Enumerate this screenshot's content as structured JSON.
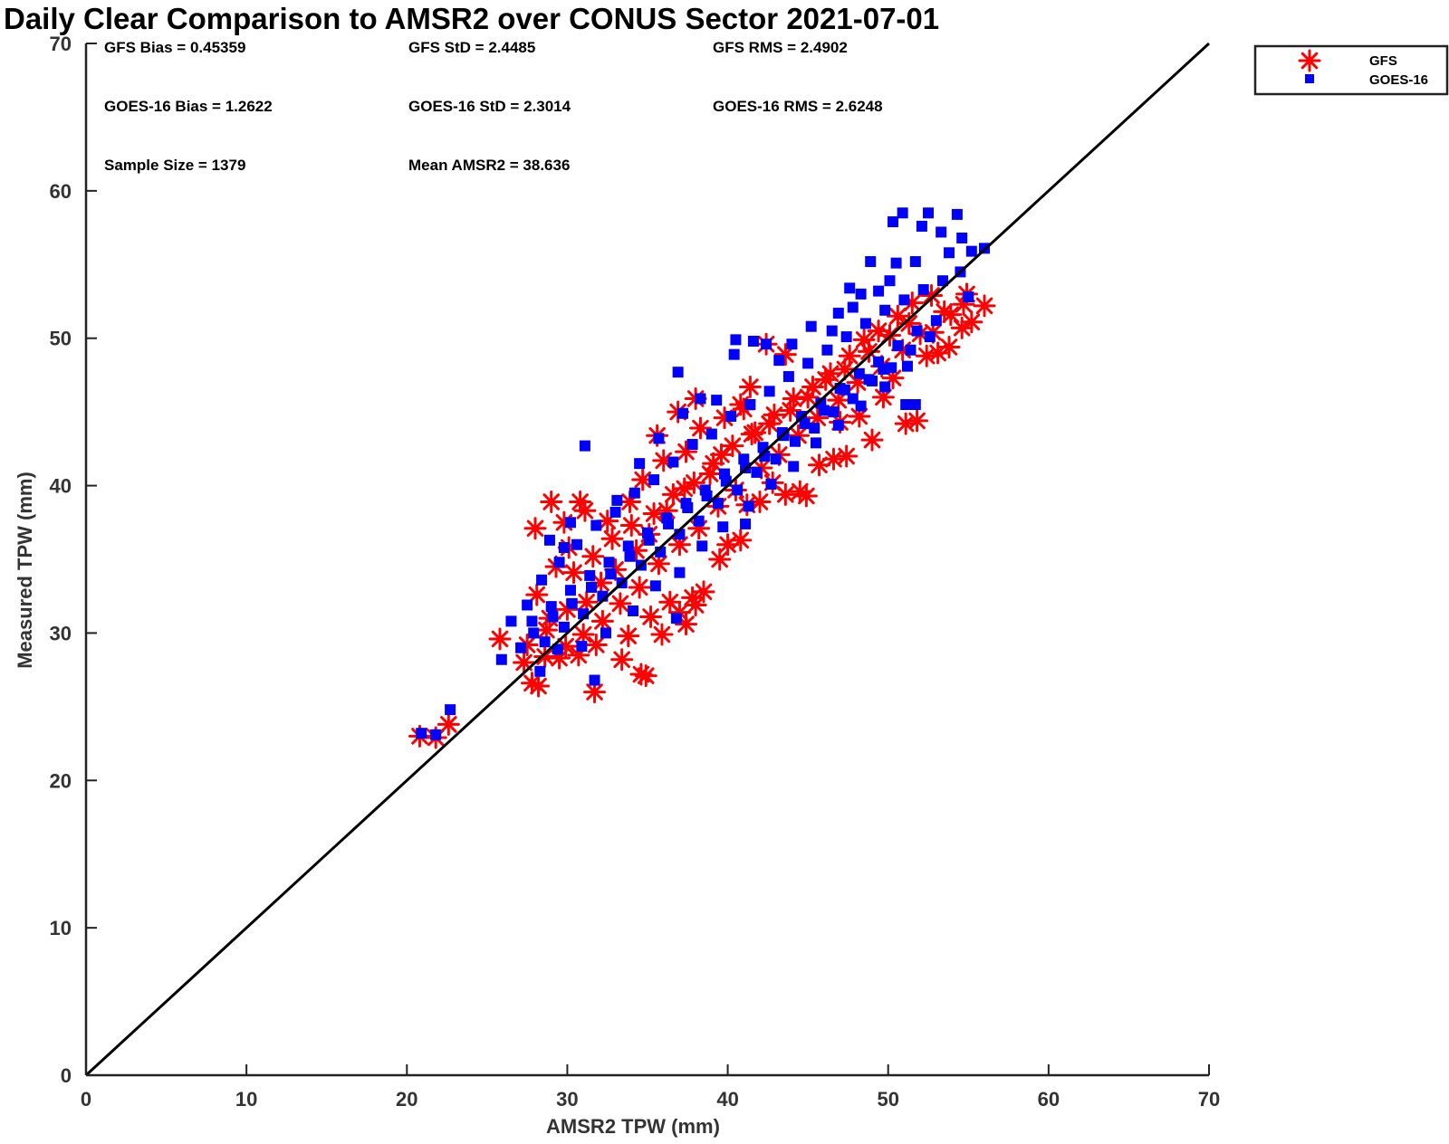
{
  "chart_data": {
    "type": "scatter",
    "title": "Daily Clear Comparison to AMSR2 over CONUS Sector 2021-07-01",
    "xlabel": "AMSR2 TPW (mm)",
    "ylabel": "Measured TPW (mm)",
    "xlim": [
      0,
      70
    ],
    "ylim": [
      0,
      70
    ],
    "xticks": [
      "0",
      "10",
      "20",
      "30",
      "40",
      "50",
      "60",
      "70"
    ],
    "yticks": [
      "0",
      "10",
      "20",
      "30",
      "40",
      "50",
      "60",
      "70"
    ],
    "grid": false,
    "legend_position": "outside-top-right",
    "reference_line": {
      "from": [
        0,
        0
      ],
      "to": [
        70,
        70
      ]
    },
    "stats": [
      [
        "GFS Bias = 0.45359",
        "GFS StD = 2.4485",
        "GFS RMS = 2.4902"
      ],
      [
        "GOES-16 Bias = 1.2622",
        "GOES-16 StD = 2.3014",
        "GOES-16 RMS = 2.6248"
      ],
      [
        "Sample Size = 1379",
        "Mean AMSR2 = 38.636",
        ""
      ]
    ],
    "series": [
      {
        "name": "GFS",
        "marker": "asterisk",
        "color": "#ff0000",
        "points": [
          [
            20.8,
            23.0
          ],
          [
            21.8,
            22.9
          ],
          [
            22.6,
            23.8
          ],
          [
            25.8,
            29.6
          ],
          [
            27.8,
            26.6
          ],
          [
            28.2,
            26.4
          ],
          [
            28.0,
            37.1
          ],
          [
            29.0,
            38.9
          ],
          [
            29.8,
            37.5
          ],
          [
            30.8,
            38.9
          ],
          [
            31.1,
            38.3
          ],
          [
            31.7,
            26.0
          ],
          [
            28.9,
            31.0
          ],
          [
            29.5,
            28.3
          ],
          [
            30.7,
            28.5
          ],
          [
            31.8,
            29.2
          ],
          [
            33.4,
            28.2
          ],
          [
            33.8,
            29.8
          ],
          [
            34.6,
            27.2
          ],
          [
            34.9,
            27.1
          ],
          [
            35.2,
            31.1
          ],
          [
            35.9,
            29.9
          ],
          [
            36.4,
            32.1
          ],
          [
            37.0,
            31.4
          ],
          [
            37.4,
            30.6
          ],
          [
            37.8,
            32.4
          ],
          [
            38.0,
            31.9
          ],
          [
            38.5,
            32.8
          ],
          [
            35.6,
            43.4
          ],
          [
            36.9,
            45.0
          ],
          [
            38.0,
            45.9
          ],
          [
            39.5,
            35.0
          ],
          [
            40.0,
            36.0
          ],
          [
            40.8,
            36.3
          ],
          [
            41.2,
            38.7
          ],
          [
            42.0,
            38.9
          ],
          [
            42.8,
            40.2
          ],
          [
            43.6,
            39.4
          ],
          [
            44.5,
            39.6
          ],
          [
            44.9,
            39.3
          ],
          [
            45.7,
            41.4
          ],
          [
            46.6,
            41.8
          ],
          [
            47.4,
            42.0
          ],
          [
            47.0,
            44.3
          ],
          [
            48.2,
            44.7
          ],
          [
            49.0,
            43.1
          ],
          [
            49.7,
            46.0
          ],
          [
            50.3,
            47.3
          ],
          [
            51.1,
            44.2
          ],
          [
            51.8,
            44.4
          ],
          [
            52.4,
            48.8
          ],
          [
            53.1,
            49.0
          ],
          [
            53.8,
            49.4
          ],
          [
            54.6,
            50.7
          ],
          [
            55.2,
            51.1
          ],
          [
            56.0,
            52.2
          ],
          [
            54.9,
            53.0
          ],
          [
            42.4,
            49.6
          ],
          [
            43.6,
            48.9
          ],
          [
            41.4,
            46.7
          ],
          [
            40.8,
            45.5
          ],
          [
            39.6,
            42.1
          ],
          [
            38.9,
            40.8
          ],
          [
            37.3,
            39.8
          ],
          [
            36.2,
            38.3
          ],
          [
            35.1,
            36.7
          ],
          [
            34.3,
            35.6
          ],
          [
            33.0,
            34.3
          ],
          [
            32.1,
            33.4
          ],
          [
            31.2,
            32.1
          ],
          [
            30.0,
            31.6
          ],
          [
            28.7,
            30.2
          ],
          [
            27.5,
            29.2
          ],
          [
            29.3,
            34.5
          ],
          [
            30.1,
            35.8
          ],
          [
            32.5,
            37.6
          ],
          [
            33.9,
            38.9
          ],
          [
            34.7,
            40.4
          ],
          [
            36.0,
            41.7
          ],
          [
            37.4,
            42.3
          ],
          [
            38.3,
            43.9
          ],
          [
            39.8,
            44.6
          ],
          [
            41.0,
            45.2
          ],
          [
            41.7,
            43.6
          ],
          [
            42.9,
            44.8
          ],
          [
            44.1,
            45.9
          ],
          [
            45.3,
            46.7
          ],
          [
            46.4,
            47.6
          ],
          [
            47.6,
            48.8
          ],
          [
            48.5,
            49.9
          ],
          [
            49.4,
            50.5
          ],
          [
            50.6,
            51.5
          ],
          [
            51.5,
            52.4
          ],
          [
            52.7,
            52.9
          ],
          [
            53.5,
            51.8
          ],
          [
            52.0,
            50.3
          ],
          [
            50.9,
            49.2
          ],
          [
            49.6,
            48.1
          ],
          [
            48.1,
            47.0
          ],
          [
            46.9,
            45.8
          ],
          [
            45.6,
            44.6
          ],
          [
            44.4,
            43.4
          ],
          [
            43.2,
            42.1
          ],
          [
            42.1,
            41.2
          ],
          [
            40.5,
            39.7
          ],
          [
            39.4,
            38.6
          ],
          [
            38.2,
            37.1
          ],
          [
            37.0,
            36.0
          ],
          [
            35.7,
            34.7
          ],
          [
            34.5,
            33.1
          ],
          [
            33.3,
            32.0
          ],
          [
            32.2,
            30.8
          ],
          [
            31.0,
            29.9
          ],
          [
            29.9,
            29.1
          ],
          [
            28.6,
            28.4
          ],
          [
            27.3,
            28.0
          ],
          [
            28.1,
            32.6
          ],
          [
            30.4,
            34.1
          ],
          [
            31.6,
            35.2
          ],
          [
            32.8,
            36.4
          ],
          [
            34.0,
            37.3
          ],
          [
            35.4,
            38.1
          ],
          [
            36.6,
            39.4
          ],
          [
            37.9,
            40.2
          ],
          [
            39.1,
            41.5
          ],
          [
            40.3,
            42.7
          ],
          [
            41.5,
            43.5
          ],
          [
            42.6,
            44.2
          ],
          [
            43.9,
            45.1
          ],
          [
            45.0,
            46.0
          ],
          [
            46.1,
            47.2
          ],
          [
            47.3,
            47.9
          ],
          [
            48.8,
            49.1
          ],
          [
            50.1,
            50.2
          ],
          [
            51.3,
            51.0
          ],
          [
            52.8,
            50.4
          ],
          [
            53.9,
            51.6
          ],
          [
            54.7,
            52.3
          ]
        ]
      },
      {
        "name": "GOES-16",
        "marker": "square",
        "color": "#0000ff",
        "points": [
          [
            20.9,
            23.2
          ],
          [
            21.8,
            23.1
          ],
          [
            22.7,
            24.8
          ],
          [
            25.9,
            28.2
          ],
          [
            26.5,
            30.8
          ],
          [
            28.3,
            27.4
          ],
          [
            31.1,
            42.7
          ],
          [
            31.7,
            26.8
          ],
          [
            36.9,
            47.7
          ],
          [
            36.8,
            31.0
          ],
          [
            38.3,
            45.9
          ],
          [
            41.1,
            37.4
          ],
          [
            40.4,
            48.9
          ],
          [
            40.5,
            49.9
          ],
          [
            41.6,
            49.8
          ],
          [
            42.4,
            49.6
          ],
          [
            45.2,
            50.8
          ],
          [
            46.5,
            50.5
          ],
          [
            47.8,
            52.1
          ],
          [
            48.3,
            53.0
          ],
          [
            48.9,
            55.2
          ],
          [
            49.4,
            53.2
          ],
          [
            50.1,
            53.9
          ],
          [
            50.3,
            57.9
          ],
          [
            50.9,
            58.5
          ],
          [
            50.5,
            55.1
          ],
          [
            51.7,
            55.2
          ],
          [
            52.1,
            57.6
          ],
          [
            52.5,
            58.5
          ],
          [
            53.3,
            57.2
          ],
          [
            54.3,
            58.4
          ],
          [
            54.6,
            56.8
          ],
          [
            55.2,
            55.9
          ],
          [
            56.0,
            56.1
          ],
          [
            53.8,
            55.8
          ],
          [
            54.5,
            54.5
          ],
          [
            51.1,
            45.5
          ],
          [
            51.7,
            45.5
          ],
          [
            49.7,
            47.9
          ],
          [
            48.8,
            47.2
          ],
          [
            47.3,
            46.5
          ],
          [
            46.0,
            45.1
          ],
          [
            44.8,
            44.2
          ],
          [
            43.5,
            43.4
          ],
          [
            42.3,
            42.0
          ],
          [
            41.1,
            41.2
          ],
          [
            39.9,
            40.3
          ],
          [
            38.7,
            39.3
          ],
          [
            37.5,
            38.5
          ],
          [
            36.3,
            37.4
          ],
          [
            35.1,
            36.3
          ],
          [
            33.9,
            35.2
          ],
          [
            32.7,
            34.0
          ],
          [
            31.5,
            33.1
          ],
          [
            30.3,
            32.0
          ],
          [
            29.1,
            31.1
          ],
          [
            27.9,
            30.0
          ],
          [
            27.1,
            29.0
          ],
          [
            27.5,
            31.9
          ],
          [
            28.4,
            33.6
          ],
          [
            29.5,
            34.8
          ],
          [
            30.6,
            36.0
          ],
          [
            31.8,
            37.3
          ],
          [
            33.0,
            38.2
          ],
          [
            34.2,
            39.5
          ],
          [
            35.4,
            40.4
          ],
          [
            36.6,
            41.6
          ],
          [
            37.8,
            42.8
          ],
          [
            39.0,
            43.5
          ],
          [
            40.2,
            44.7
          ],
          [
            41.4,
            45.5
          ],
          [
            42.6,
            46.4
          ],
          [
            43.8,
            47.4
          ],
          [
            45.0,
            48.3
          ],
          [
            46.2,
            49.2
          ],
          [
            47.4,
            50.1
          ],
          [
            48.6,
            51.0
          ],
          [
            49.8,
            51.9
          ],
          [
            51.0,
            52.6
          ],
          [
            52.2,
            53.3
          ],
          [
            53.4,
            53.9
          ],
          [
            55.0,
            52.8
          ],
          [
            53.0,
            51.2
          ],
          [
            51.8,
            50.5
          ],
          [
            50.6,
            49.5
          ],
          [
            49.4,
            48.4
          ],
          [
            48.2,
            47.6
          ],
          [
            47.0,
            46.6
          ],
          [
            45.8,
            45.6
          ],
          [
            44.6,
            44.7
          ],
          [
            43.4,
            43.6
          ],
          [
            42.2,
            42.6
          ],
          [
            41.0,
            41.8
          ],
          [
            39.8,
            40.8
          ],
          [
            38.6,
            39.7
          ],
          [
            37.4,
            38.8
          ],
          [
            36.2,
            37.8
          ],
          [
            35.0,
            36.8
          ],
          [
            33.8,
            35.9
          ],
          [
            32.6,
            34.8
          ],
          [
            31.4,
            33.9
          ],
          [
            30.2,
            32.9
          ],
          [
            29.0,
            31.8
          ],
          [
            27.8,
            30.8
          ],
          [
            28.6,
            29.4
          ],
          [
            29.8,
            30.4
          ],
          [
            31.0,
            31.3
          ],
          [
            32.2,
            32.5
          ],
          [
            33.4,
            33.4
          ],
          [
            34.6,
            34.6
          ],
          [
            35.8,
            35.5
          ],
          [
            37.0,
            36.7
          ],
          [
            38.2,
            37.6
          ],
          [
            39.4,
            38.8
          ],
          [
            40.6,
            39.7
          ],
          [
            41.8,
            40.9
          ],
          [
            43.0,
            41.8
          ],
          [
            44.2,
            43.0
          ],
          [
            45.4,
            43.9
          ],
          [
            46.6,
            45.0
          ],
          [
            47.8,
            45.9
          ],
          [
            49.0,
            47.1
          ],
          [
            50.2,
            48.0
          ],
          [
            51.4,
            49.2
          ],
          [
            52.6,
            50.1
          ],
          [
            28.9,
            36.3
          ],
          [
            29.8,
            35.8
          ],
          [
            30.2,
            37.5
          ],
          [
            33.1,
            39.0
          ],
          [
            34.5,
            41.5
          ],
          [
            35.7,
            43.2
          ],
          [
            37.2,
            44.9
          ],
          [
            39.3,
            45.8
          ],
          [
            43.2,
            48.5
          ],
          [
            44.0,
            49.6
          ],
          [
            46.9,
            51.7
          ],
          [
            47.6,
            53.4
          ],
          [
            29.4,
            28.9
          ],
          [
            30.9,
            29.1
          ],
          [
            32.4,
            30.0
          ],
          [
            34.1,
            31.5
          ],
          [
            35.5,
            33.2
          ],
          [
            37.0,
            34.1
          ],
          [
            38.4,
            35.9
          ],
          [
            39.7,
            37.2
          ],
          [
            41.3,
            38.6
          ],
          [
            42.7,
            40.1
          ],
          [
            44.1,
            41.3
          ],
          [
            45.5,
            42.9
          ],
          [
            46.9,
            44.1
          ],
          [
            48.3,
            45.4
          ],
          [
            49.8,
            46.7
          ],
          [
            51.2,
            48.1
          ]
        ]
      }
    ]
  }
}
